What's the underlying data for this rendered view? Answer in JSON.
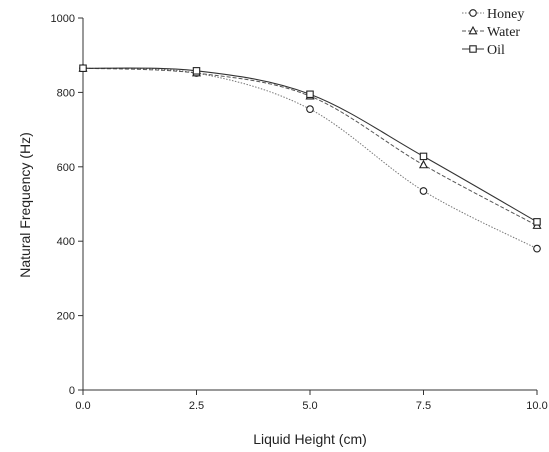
{
  "chart_data": {
    "type": "line",
    "xlabel": "Liquid Height (cm)",
    "ylabel": "Natural Frequency (Hz)",
    "xlim": [
      0,
      10
    ],
    "ylim": [
      0,
      1000
    ],
    "x_ticks": [
      "0.0",
      "2.5",
      "5.0",
      "7.5",
      "10.0"
    ],
    "y_ticks": [
      "0",
      "200",
      "400",
      "600",
      "800",
      "1000"
    ],
    "grid": false,
    "legend_position": "top-right",
    "x": [
      0,
      2.5,
      5,
      7.5,
      10
    ],
    "series": [
      {
        "name": "Honey",
        "marker": "circle",
        "line_style": "dotted",
        "values": [
          865,
          852,
          755,
          535,
          380
        ]
      },
      {
        "name": "Water",
        "marker": "triangle",
        "line_style": "dashed",
        "values": [
          865,
          852,
          790,
          605,
          442
        ]
      },
      {
        "name": "Oil",
        "marker": "square",
        "line_style": "solid",
        "values": [
          865,
          858,
          795,
          628,
          452
        ]
      }
    ]
  }
}
